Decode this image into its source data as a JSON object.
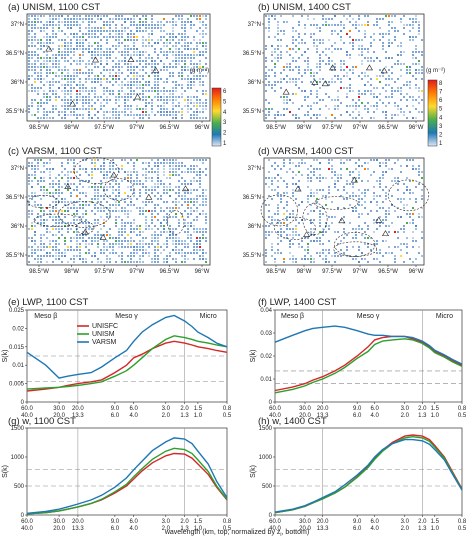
{
  "maps": [
    {
      "id": "a",
      "title": "(a) UNISM, 1100 CST",
      "lat_ticks": [
        "37°N",
        "36.5°N",
        "36°N",
        "35.5°N"
      ],
      "lon_ticks": [
        "98.5°W",
        "98°W",
        "97.5°W",
        "97°W",
        "96.5°W",
        "96°W"
      ],
      "density": 0.62,
      "contours": false
    },
    {
      "id": "b",
      "title": "(b) UNISM, 1400 CST",
      "lat_ticks": [
        "37°N",
        "36.5°N",
        "36°N",
        "35.5°N"
      ],
      "lon_ticks": [
        "98.5°W",
        "98°W",
        "97.5°W",
        "97°W",
        "96.5°W",
        "96°W"
      ],
      "density": 0.34,
      "contours": false
    },
    {
      "id": "c",
      "title": "(c) VARSM, 1100 CST",
      "lat_ticks": [
        "37°N",
        "36.5°N",
        "36°N",
        "35.5°N"
      ],
      "lon_ticks": [
        "98.5°W",
        "98°W",
        "97.5°W",
        "97°W",
        "96.5°W",
        "96°W"
      ],
      "density": 0.55,
      "contours": true
    },
    {
      "id": "d",
      "title": "(d) VARSM, 1400 CST",
      "lat_ticks": [
        "37°N",
        "36.5°N",
        "36°N",
        "35.5°N"
      ],
      "lon_ticks": [
        "98.5°W",
        "98°W",
        "97.5°W",
        "97°W",
        "96.5°W",
        "96°W"
      ],
      "density": 0.32,
      "contours": true
    }
  ],
  "colorbars": [
    {
      "id": "cb1",
      "unit": "(g m⁻²)",
      "ticks": [
        "6",
        "5",
        "4",
        "3",
        "2",
        "1"
      ],
      "colors": [
        "#e41a1c",
        "#ff7f00",
        "#ffd92f",
        "#4daf4a",
        "#1f78b4",
        "#dfe6f7"
      ]
    },
    {
      "id": "cb2",
      "unit": "(g m⁻²)",
      "ticks": [
        "8",
        "7",
        "6",
        "5",
        "4",
        "3",
        "2",
        "1"
      ],
      "colors": [
        "#e41a1c",
        "#ff7f00",
        "#ffd92f",
        "#4daf4a",
        "#1f78b4",
        "#dfe6f7"
      ]
    }
  ],
  "region_labels": [
    "Meso β",
    "Meso γ",
    "Micro"
  ],
  "top_axis_ticks": [
    "60.0",
    "30.0",
    "20.0",
    "9.0",
    "6.0",
    "3.0",
    "2.0",
    "1.5",
    "0.8"
  ],
  "bottom_axis_ticks": [
    "40.0",
    "20.0",
    "13.3",
    "6.0",
    "4.0",
    "2.0",
    "1.3",
    "1.0",
    "0.5"
  ],
  "x_axis_label": "wavelength (km, top; normalized by z",
  "x_axis_label_sub": "i",
  "x_axis_label_end": ", bottom)",
  "series_colors": {
    "UNISFC": "#d62728",
    "UNISM": "#2ca02c",
    "VARSM": "#1f77b4"
  },
  "chart_data": [
    {
      "panel": "e",
      "type": "line",
      "title": "(e) LWP, 1100 CST",
      "ylabel": "S(k)",
      "ylim": [
        0,
        0.025
      ],
      "yticks": [
        "0.025",
        "0.02",
        "0.015",
        "0.01",
        "0.005",
        "0"
      ],
      "x": [
        60,
        40,
        30,
        25,
        20,
        15,
        12,
        9,
        7,
        6,
        5,
        4,
        3,
        2.5,
        2,
        1.7,
        1.5,
        1.2,
        1,
        0.8
      ],
      "legend": [
        "UNISFC",
        "UNISM",
        "VARSM"
      ],
      "legend_placement": "top-left",
      "series": [
        {
          "name": "UNISFC",
          "values": [
            0.003,
            0.0035,
            0.004,
            0.0045,
            0.005,
            0.0055,
            0.006,
            0.008,
            0.01,
            0.012,
            0.013,
            0.0145,
            0.016,
            0.0165,
            0.016,
            0.0155,
            0.015,
            0.0145,
            0.014,
            0.0135
          ]
        },
        {
          "name": "UNISM",
          "values": [
            0.0035,
            0.0038,
            0.004,
            0.0042,
            0.0045,
            0.005,
            0.0055,
            0.007,
            0.0085,
            0.01,
            0.012,
            0.0145,
            0.017,
            0.018,
            0.0175,
            0.017,
            0.0165,
            0.016,
            0.0155,
            0.015
          ]
        },
        {
          "name": "VARSM",
          "values": [
            0.0135,
            0.01,
            0.0065,
            0.007,
            0.0075,
            0.008,
            0.0095,
            0.012,
            0.014,
            0.0165,
            0.019,
            0.021,
            0.023,
            0.0235,
            0.022,
            0.0205,
            0.019,
            0.0175,
            0.016,
            0.015
          ]
        }
      ],
      "hlines": [
        0.0055,
        0.0125
      ]
    },
    {
      "panel": "f",
      "type": "line",
      "title": "(f) LWP, 1400 CST",
      "ylabel": "S(k)",
      "ylim": [
        0,
        0.04
      ],
      "yticks": [
        "0.04",
        "0.03",
        "0.02",
        "0.01",
        "0"
      ],
      "x": [
        60,
        40,
        30,
        25,
        20,
        15,
        12,
        9,
        7,
        6,
        5,
        4,
        3,
        2.5,
        2,
        1.7,
        1.5,
        1.2,
        1,
        0.8
      ],
      "legend": [],
      "legend_placement": "none",
      "series": [
        {
          "name": "UNISFC",
          "values": [
            0.005,
            0.0065,
            0.008,
            0.0095,
            0.011,
            0.0135,
            0.016,
            0.02,
            0.024,
            0.027,
            0.028,
            0.0285,
            0.0285,
            0.0275,
            0.026,
            0.024,
            0.022,
            0.02,
            0.018,
            0.016
          ]
        },
        {
          "name": "UNISM",
          "values": [
            0.004,
            0.0055,
            0.007,
            0.0085,
            0.01,
            0.0125,
            0.015,
            0.019,
            0.022,
            0.025,
            0.0265,
            0.027,
            0.0275,
            0.027,
            0.0255,
            0.0235,
            0.0215,
            0.0195,
            0.0175,
            0.0155
          ]
        },
        {
          "name": "VARSM",
          "values": [
            0.026,
            0.029,
            0.031,
            0.032,
            0.0325,
            0.033,
            0.0325,
            0.031,
            0.0295,
            0.029,
            0.029,
            0.0285,
            0.0285,
            0.028,
            0.0265,
            0.0245,
            0.0225,
            0.0205,
            0.0185,
            0.0165
          ]
        }
      ],
      "hlines": [
        0.008,
        0.0135
      ]
    },
    {
      "panel": "g",
      "type": "line",
      "title": "(g) w, 1100 CST",
      "ylabel": "S(k)",
      "ylim": [
        0,
        1500
      ],
      "yticks": [
        "1500",
        "1000",
        "500",
        "0"
      ],
      "x": [
        60,
        40,
        30,
        25,
        20,
        15,
        12,
        9,
        7,
        6,
        5,
        4,
        3,
        2.5,
        2,
        1.7,
        1.5,
        1.2,
        1,
        0.8
      ],
      "legend": [],
      "legend_placement": "none",
      "series": [
        {
          "name": "UNISFC",
          "values": [
            20,
            40,
            70,
            100,
            140,
            200,
            260,
            380,
            500,
            620,
            760,
            900,
            1020,
            1060,
            1050,
            980,
            880,
            700,
            480,
            260
          ]
        },
        {
          "name": "UNISM",
          "values": [
            20,
            40,
            70,
            100,
            140,
            200,
            270,
            400,
            530,
            660,
            800,
            960,
            1100,
            1150,
            1130,
            1060,
            950,
            750,
            500,
            270
          ]
        },
        {
          "name": "VARSM",
          "values": [
            30,
            60,
            100,
            140,
            190,
            260,
            340,
            480,
            640,
            780,
            930,
            1110,
            1260,
            1330,
            1310,
            1230,
            1100,
            880,
            580,
            300
          ]
        }
      ],
      "hlines": [
        500,
        780
      ]
    },
    {
      "panel": "h",
      "type": "line",
      "title": "(h) w, 1400 CST",
      "ylabel": "S(k)",
      "ylim": [
        0,
        1500
      ],
      "yticks": [
        "1500",
        "1000",
        "500",
        "0"
      ],
      "x": [
        60,
        40,
        30,
        25,
        20,
        15,
        12,
        9,
        7,
        6,
        5,
        4,
        3,
        2.5,
        2,
        1.7,
        1.5,
        1.2,
        1,
        0.8
      ],
      "legend": [],
      "legend_placement": "none",
      "series": [
        {
          "name": "UNISFC",
          "values": [
            40,
            90,
            150,
            210,
            280,
            380,
            480,
            660,
            840,
            980,
            1120,
            1250,
            1360,
            1380,
            1360,
            1300,
            1200,
            1000,
            750,
            450
          ]
        },
        {
          "name": "UNISM",
          "values": [
            40,
            90,
            150,
            210,
            280,
            380,
            480,
            650,
            820,
            960,
            1100,
            1230,
            1330,
            1350,
            1330,
            1270,
            1170,
            980,
            730,
            440
          ]
        },
        {
          "name": "VARSM",
          "values": [
            50,
            100,
            160,
            220,
            300,
            400,
            520,
            690,
            860,
            1000,
            1130,
            1230,
            1300,
            1300,
            1280,
            1220,
            1130,
            950,
            710,
            430
          ]
        }
      ],
      "hlines": [
        500,
        780
      ]
    }
  ]
}
